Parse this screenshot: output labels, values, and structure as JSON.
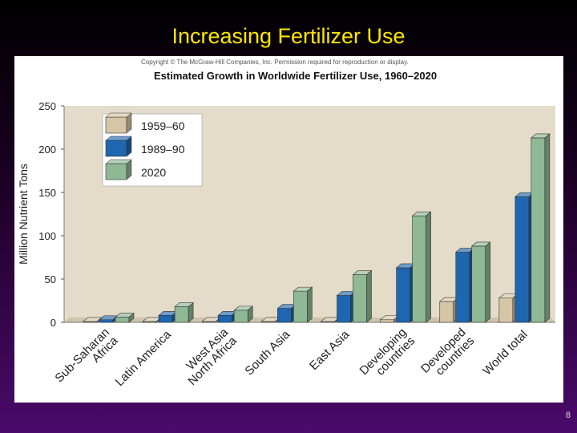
{
  "slide": {
    "title": "Increasing Fertilizer Use",
    "page_number": "8"
  },
  "figure": {
    "copyright": "Copyright © The McGraw-Hill Companies, Inc. Permission required for reproduction or display."
  },
  "colors": {
    "s1960": "#d6c6a6",
    "s1990": "#1f66b0",
    "s2020": "#8fb894",
    "plot_bg": "#e4dcc8",
    "floor": "#cfc4aa"
  },
  "chart_data": {
    "type": "bar",
    "title": "Estimated Growth in Worldwide Fertilizer Use, 1960–2020",
    "xlabel": "",
    "ylabel": "Million Nutrient Tons",
    "ylim": [
      0,
      250
    ],
    "yticks": [
      "0",
      "50",
      "100",
      "150",
      "200",
      "250"
    ],
    "grid": false,
    "legend_position": "top-left",
    "categories": [
      "Sub-Saharan Africa",
      "Latin America",
      "West Asia North Africa",
      "South Asia",
      "East Asia",
      "Developing countries",
      "Developed countries",
      "World total"
    ],
    "category_labels": [
      [
        "Sub-Saharan",
        "Africa"
      ],
      [
        "Latin America"
      ],
      [
        "West Asia",
        "North Africa"
      ],
      [
        "South Asia"
      ],
      [
        "East Asia"
      ],
      [
        "Developing",
        "countries"
      ],
      [
        "Developed",
        "countries"
      ],
      [
        "World total"
      ]
    ],
    "series": [
      {
        "name": "1959–60",
        "color_key": "s1960",
        "values": [
          1,
          1,
          1,
          1,
          1,
          3,
          24,
          28
        ]
      },
      {
        "name": "1989–90",
        "color_key": "s1990",
        "values": [
          3,
          8,
          8,
          16,
          31,
          63,
          81,
          145
        ]
      },
      {
        "name": "2020",
        "color_key": "s2020",
        "values": [
          6,
          18,
          14,
          36,
          55,
          123,
          88,
          213
        ]
      }
    ]
  }
}
